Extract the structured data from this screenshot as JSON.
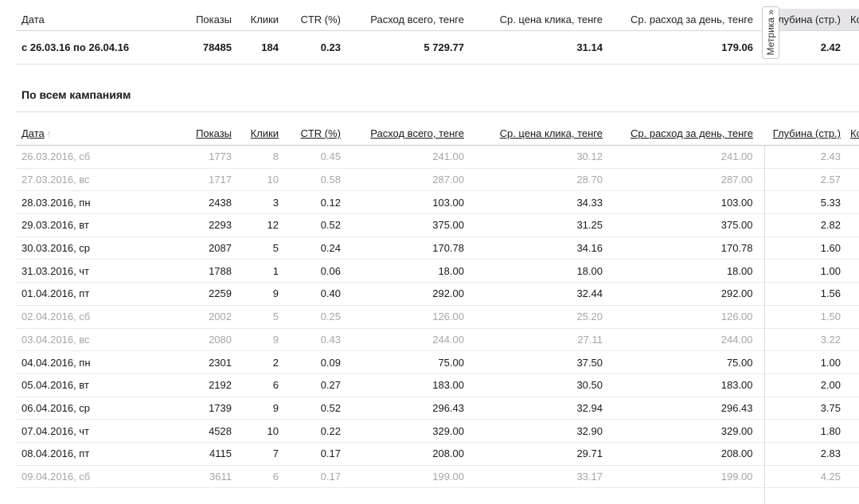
{
  "colors": {
    "fixed_header_bg": "#e6e4e9",
    "weekend_text": "#a6a6a6"
  },
  "metrika_tab": {
    "label": "Метрика »"
  },
  "summary": {
    "columns": [
      "Дата",
      "Показы",
      "Клики",
      "CTR (%)",
      "Расход всего, тенге",
      "Ср. цена клика, тенге",
      "Ср. расход за день, тенге",
      "Глубина (стр.)",
      "Ко"
    ],
    "row": [
      "с 26.03.16 по 26.04.16",
      "78485",
      "184",
      "0.23",
      "5 729.77",
      "31.14",
      "179.06",
      "2.42",
      ""
    ]
  },
  "campaigns": {
    "title": "По всем кампаниям",
    "sort_arrow": "↑",
    "columns": [
      "Дата",
      "Показы",
      "Клики",
      "CTR (%)",
      "Расход всего, тенге",
      "Ср. цена клика, тенге",
      "Ср. расход за день, тенге",
      "Глубина (стр.)",
      "Ко"
    ],
    "rows": [
      {
        "date": "26.03.2016, сб",
        "weekend": true,
        "values": [
          "1773",
          "8",
          "0.45",
          "241.00",
          "30.12",
          "241.00",
          "2.43"
        ]
      },
      {
        "date": "27.03.2016, вс",
        "weekend": true,
        "values": [
          "1717",
          "10",
          "0.58",
          "287.00",
          "28.70",
          "287.00",
          "2.57"
        ]
      },
      {
        "date": "28.03.2016, пн",
        "weekend": false,
        "values": [
          "2438",
          "3",
          "0.12",
          "103.00",
          "34.33",
          "103.00",
          "5.33"
        ]
      },
      {
        "date": "29.03.2016, вт",
        "weekend": false,
        "values": [
          "2293",
          "12",
          "0.52",
          "375.00",
          "31.25",
          "375.00",
          "2.82"
        ]
      },
      {
        "date": "30.03.2016, ср",
        "weekend": false,
        "values": [
          "2087",
          "5",
          "0.24",
          "170.78",
          "34.16",
          "170.78",
          "1.60"
        ]
      },
      {
        "date": "31.03.2016, чт",
        "weekend": false,
        "values": [
          "1788",
          "1",
          "0.06",
          "18.00",
          "18.00",
          "18.00",
          "1.00"
        ]
      },
      {
        "date": "01.04.2016, пт",
        "weekend": false,
        "values": [
          "2259",
          "9",
          "0.40",
          "292.00",
          "32.44",
          "292.00",
          "1.56"
        ]
      },
      {
        "date": "02.04.2016, сб",
        "weekend": true,
        "values": [
          "2002",
          "5",
          "0.25",
          "126.00",
          "25.20",
          "126.00",
          "1.50"
        ]
      },
      {
        "date": "03.04.2016, вс",
        "weekend": true,
        "values": [
          "2080",
          "9",
          "0.43",
          "244.00",
          "27.11",
          "244.00",
          "3.22"
        ]
      },
      {
        "date": "04.04.2016, пн",
        "weekend": false,
        "values": [
          "2301",
          "2",
          "0.09",
          "75.00",
          "37.50",
          "75.00",
          "1.00"
        ]
      },
      {
        "date": "05.04.2016, вт",
        "weekend": false,
        "values": [
          "2192",
          "6",
          "0.27",
          "183.00",
          "30.50",
          "183.00",
          "2.00"
        ]
      },
      {
        "date": "06.04.2016, ср",
        "weekend": false,
        "values": [
          "1739",
          "9",
          "0.52",
          "296.43",
          "32.94",
          "296.43",
          "3.75"
        ]
      },
      {
        "date": "07.04.2016, чт",
        "weekend": false,
        "values": [
          "4528",
          "10",
          "0.22",
          "329.00",
          "32.90",
          "329.00",
          "1.80"
        ]
      },
      {
        "date": "08.04.2016, пт",
        "weekend": false,
        "values": [
          "4115",
          "7",
          "0.17",
          "208.00",
          "29.71",
          "208.00",
          "2.83"
        ]
      },
      {
        "date": "09.04.2016, сб",
        "weekend": true,
        "values": [
          "3611",
          "6",
          "0.17",
          "199.00",
          "33.17",
          "199.00",
          "4.25"
        ]
      }
    ]
  }
}
